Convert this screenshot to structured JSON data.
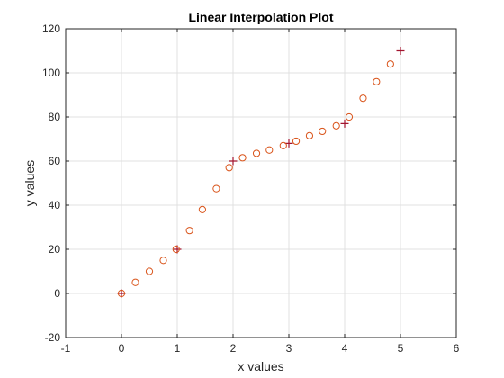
{
  "chart_data": {
    "type": "scatter",
    "title": "Linear Interpolation Plot",
    "xlabel": "x values",
    "ylabel": "y values",
    "xlim": [
      -1,
      6
    ],
    "ylim": [
      -20,
      120
    ],
    "xticks": [
      -1,
      0,
      1,
      2,
      3,
      4,
      5,
      6
    ],
    "yticks": [
      -20,
      0,
      20,
      40,
      60,
      80,
      100,
      120
    ],
    "grid": true,
    "box": true,
    "legend": null,
    "series": [
      {
        "marker": "plus",
        "color": "#A2142F",
        "x": [
          0,
          1,
          2,
          3,
          4,
          5
        ],
        "y": [
          0,
          20,
          60,
          68,
          77,
          110
        ]
      },
      {
        "marker": "circle",
        "color": "#D95319",
        "x": [
          0,
          0.25,
          0.5,
          0.75,
          0.98,
          1.22,
          1.45,
          1.7,
          1.93,
          2.17,
          2.42,
          2.65,
          2.9,
          3.13,
          3.37,
          3.6,
          3.85,
          4.08,
          4.33,
          4.57,
          4.82
        ],
        "y": [
          0,
          5,
          10,
          15,
          20,
          28.5,
          38,
          47.5,
          57,
          61.5,
          63.5,
          65,
          67,
          69,
          71.5,
          73.5,
          76,
          80,
          88.5,
          96,
          104
        ]
      }
    ]
  }
}
